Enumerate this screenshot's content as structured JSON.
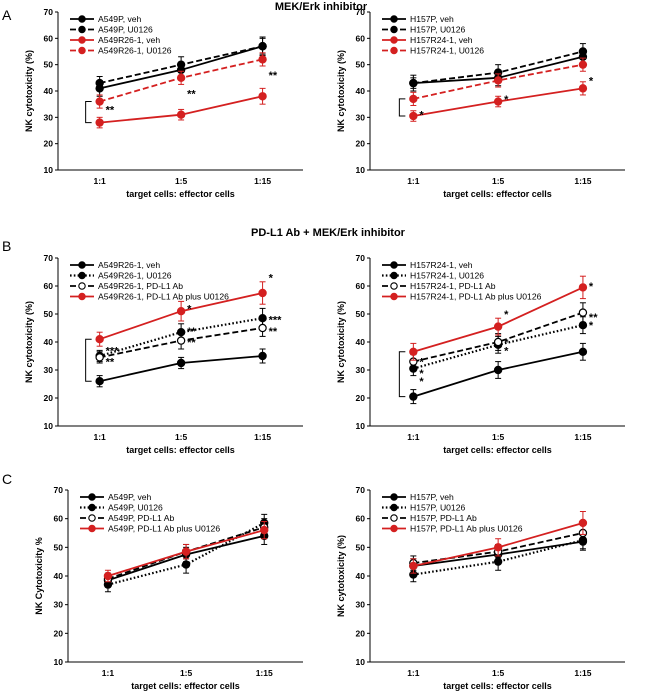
{
  "figure": {
    "panel_labels": [
      "A",
      "B",
      "C"
    ],
    "section_titles": [
      "MEK/Erk inhibitor",
      "PD-L1 Ab + MEK/Erk inhibitor"
    ]
  },
  "colors": {
    "black": "#000000",
    "red": "#d42020",
    "grid": "#000000"
  },
  "chart_data": [
    {
      "id": "A-left",
      "type": "line",
      "categories": [
        "1:1",
        "1:5",
        "1:15"
      ],
      "xlabel": "target cells: effector cells",
      "ylabel": "NK cytotoxicity (%)",
      "ylim": [
        10,
        70
      ],
      "yticks": [
        10,
        20,
        30,
        40,
        50,
        60,
        70
      ],
      "legend_position": "top-left",
      "series": [
        {
          "name": "A549P, veh",
          "values": [
            41,
            48,
            57
          ],
          "errors": [
            3,
            3,
            3
          ],
          "color": "black",
          "style": "solid",
          "marker": "filled"
        },
        {
          "name": "A549P, U0126",
          "values": [
            43,
            50,
            57
          ],
          "errors": [
            2.5,
            3,
            3.5
          ],
          "color": "black",
          "style": "dashed",
          "marker": "filled"
        },
        {
          "name": "A549R26-1, veh",
          "values": [
            28,
            31,
            38
          ],
          "errors": [
            2,
            2,
            3
          ],
          "color": "red",
          "style": "solid",
          "marker": "filled"
        },
        {
          "name": "A549R26-1, U0126",
          "values": [
            36,
            45,
            52
          ],
          "errors": [
            2.5,
            2.5,
            2.5
          ],
          "color": "red",
          "style": "dashed",
          "marker": "filled"
        }
      ],
      "annotations": [
        {
          "text": "**",
          "x": "1:1",
          "y": 33
        },
        {
          "text": "**",
          "x": "1:5",
          "y": 39
        },
        {
          "text": "**",
          "x": "1:15",
          "y": 46
        }
      ],
      "bracket": {
        "category": "1:1",
        "from": 28,
        "to": 36
      }
    },
    {
      "id": "A-right",
      "type": "line",
      "categories": [
        "1:1",
        "1:5",
        "1:15"
      ],
      "xlabel": "target cells: effector cells",
      "ylabel": "NK cytotoxicity (%)",
      "ylim": [
        10,
        70
      ],
      "yticks": [
        10,
        20,
        30,
        40,
        50,
        60,
        70
      ],
      "legend_position": "top-left",
      "series": [
        {
          "name": "H157P, veh",
          "values": [
            43,
            45,
            53
          ],
          "errors": [
            3,
            3,
            3
          ],
          "color": "black",
          "style": "solid",
          "marker": "filled"
        },
        {
          "name": "H157P, U0126",
          "values": [
            43,
            47,
            55
          ],
          "errors": [
            2,
            3,
            3
          ],
          "color": "black",
          "style": "dashed",
          "marker": "filled"
        },
        {
          "name": "H157R24-1, veh",
          "values": [
            30.5,
            36,
            41
          ],
          "errors": [
            2,
            2,
            2.5
          ],
          "color": "red",
          "style": "solid",
          "marker": "filled"
        },
        {
          "name": "H157R24-1, U0126",
          "values": [
            37,
            44,
            50
          ],
          "errors": [
            2.5,
            2.5,
            2.5
          ],
          "color": "red",
          "style": "dashed",
          "marker": "filled"
        }
      ],
      "annotations": [
        {
          "text": "*",
          "x": "1:1",
          "y": 31
        },
        {
          "text": "*",
          "x": "1:5",
          "y": 37
        },
        {
          "text": "*",
          "x": "1:15",
          "y": 44
        }
      ],
      "bracket": {
        "category": "1:1",
        "from": 30.5,
        "to": 37
      }
    },
    {
      "id": "B-left",
      "type": "line",
      "categories": [
        "1:1",
        "1:5",
        "1:15"
      ],
      "xlabel": "target cells: effector cells",
      "ylabel": "NK cytotoxicity (%)",
      "ylim": [
        10,
        70
      ],
      "yticks": [
        10,
        20,
        30,
        40,
        50,
        60,
        70
      ],
      "legend_position": "top-left",
      "series": [
        {
          "name": "A549R26-1, veh",
          "values": [
            26,
            32.5,
            35
          ],
          "errors": [
            2,
            2,
            2.5
          ],
          "color": "black",
          "style": "solid",
          "marker": "filled"
        },
        {
          "name": "A549R26-1, U0126",
          "values": [
            35,
            43.5,
            48.5
          ],
          "errors": [
            2,
            3,
            3.5
          ],
          "color": "black",
          "style": "dotted",
          "marker": "filled"
        },
        {
          "name": "A549R26-1, PD-L1 Ab",
          "values": [
            34.5,
            40.5,
            45
          ],
          "errors": [
            2,
            3,
            3
          ],
          "color": "black",
          "style": "dashed",
          "marker": "open"
        },
        {
          "name": "A549R26-1, PD-L1 Ab plus U0126",
          "values": [
            41,
            51,
            57.5
          ],
          "errors": [
            2.5,
            3.5,
            4
          ],
          "color": "red",
          "style": "solid",
          "marker": "filled"
        }
      ],
      "annotations": [
        {
          "text": "***",
          "x": "1:1",
          "y": 37
        },
        {
          "text": "**",
          "x": "1:1",
          "y": 33
        },
        {
          "text": "*",
          "x": "1:5",
          "y": 52
        },
        {
          "text": "**",
          "x": "1:5",
          "y": 44
        },
        {
          "text": "**",
          "x": "1:5",
          "y": 40
        },
        {
          "text": "*",
          "x": "1:15",
          "y": 63
        },
        {
          "text": "***",
          "x": "1:15",
          "y": 48
        },
        {
          "text": "**",
          "x": "1:15",
          "y": 44
        }
      ],
      "bracket": {
        "category": "1:1",
        "from": 26,
        "to": 41
      }
    },
    {
      "id": "B-right",
      "type": "line",
      "categories": [
        "1:1",
        "1:5",
        "1:15"
      ],
      "xlabel": "target cells: effector cells",
      "ylabel": "NK cytotoxicity (%)",
      "ylim": [
        10,
        70
      ],
      "yticks": [
        10,
        20,
        30,
        40,
        50,
        60,
        70
      ],
      "legend_position": "top-left",
      "series": [
        {
          "name": "H157R24-1, veh",
          "values": [
            20.5,
            30,
            36.5
          ],
          "errors": [
            2.5,
            3,
            3
          ],
          "color": "black",
          "style": "solid",
          "marker": "filled"
        },
        {
          "name": "H157R24-1, U0126",
          "values": [
            30.5,
            39,
            46
          ],
          "errors": [
            2.5,
            3,
            3
          ],
          "color": "black",
          "style": "dotted",
          "marker": "filled"
        },
        {
          "name": "H157R24-1, PD-L1 Ab",
          "values": [
            33,
            40,
            50.5
          ],
          "errors": [
            2.5,
            3,
            3.5
          ],
          "color": "black",
          "style": "dashed",
          "marker": "open"
        },
        {
          "name": "H157R24-1, PD-L1 Ab plus U0126",
          "values": [
            36.5,
            45.5,
            59.5
          ],
          "errors": [
            3,
            3,
            4
          ],
          "color": "red",
          "style": "solid",
          "marker": "filled"
        }
      ],
      "annotations": [
        {
          "text": "*",
          "x": "1:1",
          "y": 33
        },
        {
          "text": "*",
          "x": "1:1",
          "y": 29
        },
        {
          "text": "*",
          "x": "1:1",
          "y": 26
        },
        {
          "text": "*",
          "x": "1:5",
          "y": 50
        },
        {
          "text": "*",
          "x": "1:5",
          "y": 40
        },
        {
          "text": "*",
          "x": "1:5",
          "y": 37
        },
        {
          "text": "*",
          "x": "1:15",
          "y": 60
        },
        {
          "text": "**",
          "x": "1:15",
          "y": 49
        },
        {
          "text": "*",
          "x": "1:15",
          "y": 46
        }
      ],
      "bracket": {
        "category": "1:1",
        "from": 20.5,
        "to": 36.5
      }
    },
    {
      "id": "C-left",
      "type": "line",
      "categories": [
        "1:1",
        "1:5",
        "1:15"
      ],
      "xlabel": "target cells: effector cells",
      "ylabel": "NK Cytotoxicity %",
      "ylim": [
        10,
        70
      ],
      "yticks": [
        10,
        20,
        30,
        40,
        50,
        60,
        70
      ],
      "legend_position": "top-left",
      "series": [
        {
          "name": "A549P, veh",
          "values": [
            38.5,
            47.5,
            54
          ],
          "errors": [
            2,
            2.5,
            3
          ],
          "color": "black",
          "style": "solid",
          "marker": "filled"
        },
        {
          "name": "A549P, U0126",
          "values": [
            37,
            44,
            58.5
          ],
          "errors": [
            2.5,
            3,
            3
          ],
          "color": "black",
          "style": "dotted",
          "marker": "filled"
        },
        {
          "name": "A549P, PD-L1 Ab",
          "values": [
            39,
            48.5,
            57
          ],
          "errors": [
            2,
            2.5,
            3
          ],
          "color": "black",
          "style": "dashed",
          "marker": "open"
        },
        {
          "name": "A549P, PD-L1 Ab plus U0126",
          "values": [
            40,
            48.5,
            56
          ],
          "errors": [
            2,
            2.5,
            3
          ],
          "color": "red",
          "style": "solid",
          "marker": "filled"
        }
      ],
      "annotations": []
    },
    {
      "id": "C-right",
      "type": "line",
      "categories": [
        "1:1",
        "1:5",
        "1:15"
      ],
      "xlabel": "target cells: effector cells",
      "ylabel": "NK cytotoxicity (%)",
      "ylim": [
        10,
        70
      ],
      "yticks": [
        10,
        20,
        30,
        40,
        50,
        60,
        70
      ],
      "legend_position": "top-left",
      "series": [
        {
          "name": "H157P, veh",
          "values": [
            43.5,
            47.5,
            52
          ],
          "errors": [
            2.5,
            2.5,
            3
          ],
          "color": "black",
          "style": "solid",
          "marker": "filled"
        },
        {
          "name": "H157P, U0126",
          "values": [
            40.5,
            45,
            52.5
          ],
          "errors": [
            2.5,
            3,
            3
          ],
          "color": "black",
          "style": "dotted",
          "marker": "filled"
        },
        {
          "name": "H157P, PD-L1 Ab",
          "values": [
            44.5,
            48.5,
            55
          ],
          "errors": [
            2.5,
            2.5,
            3
          ],
          "color": "black",
          "style": "dashed",
          "marker": "open"
        },
        {
          "name": "H157P, PD-L1 Ab plus U0126",
          "values": [
            43.5,
            50,
            58.5
          ],
          "errors": [
            2.5,
            3,
            4
          ],
          "color": "red",
          "style": "solid",
          "marker": "filled"
        }
      ],
      "annotations": []
    }
  ]
}
